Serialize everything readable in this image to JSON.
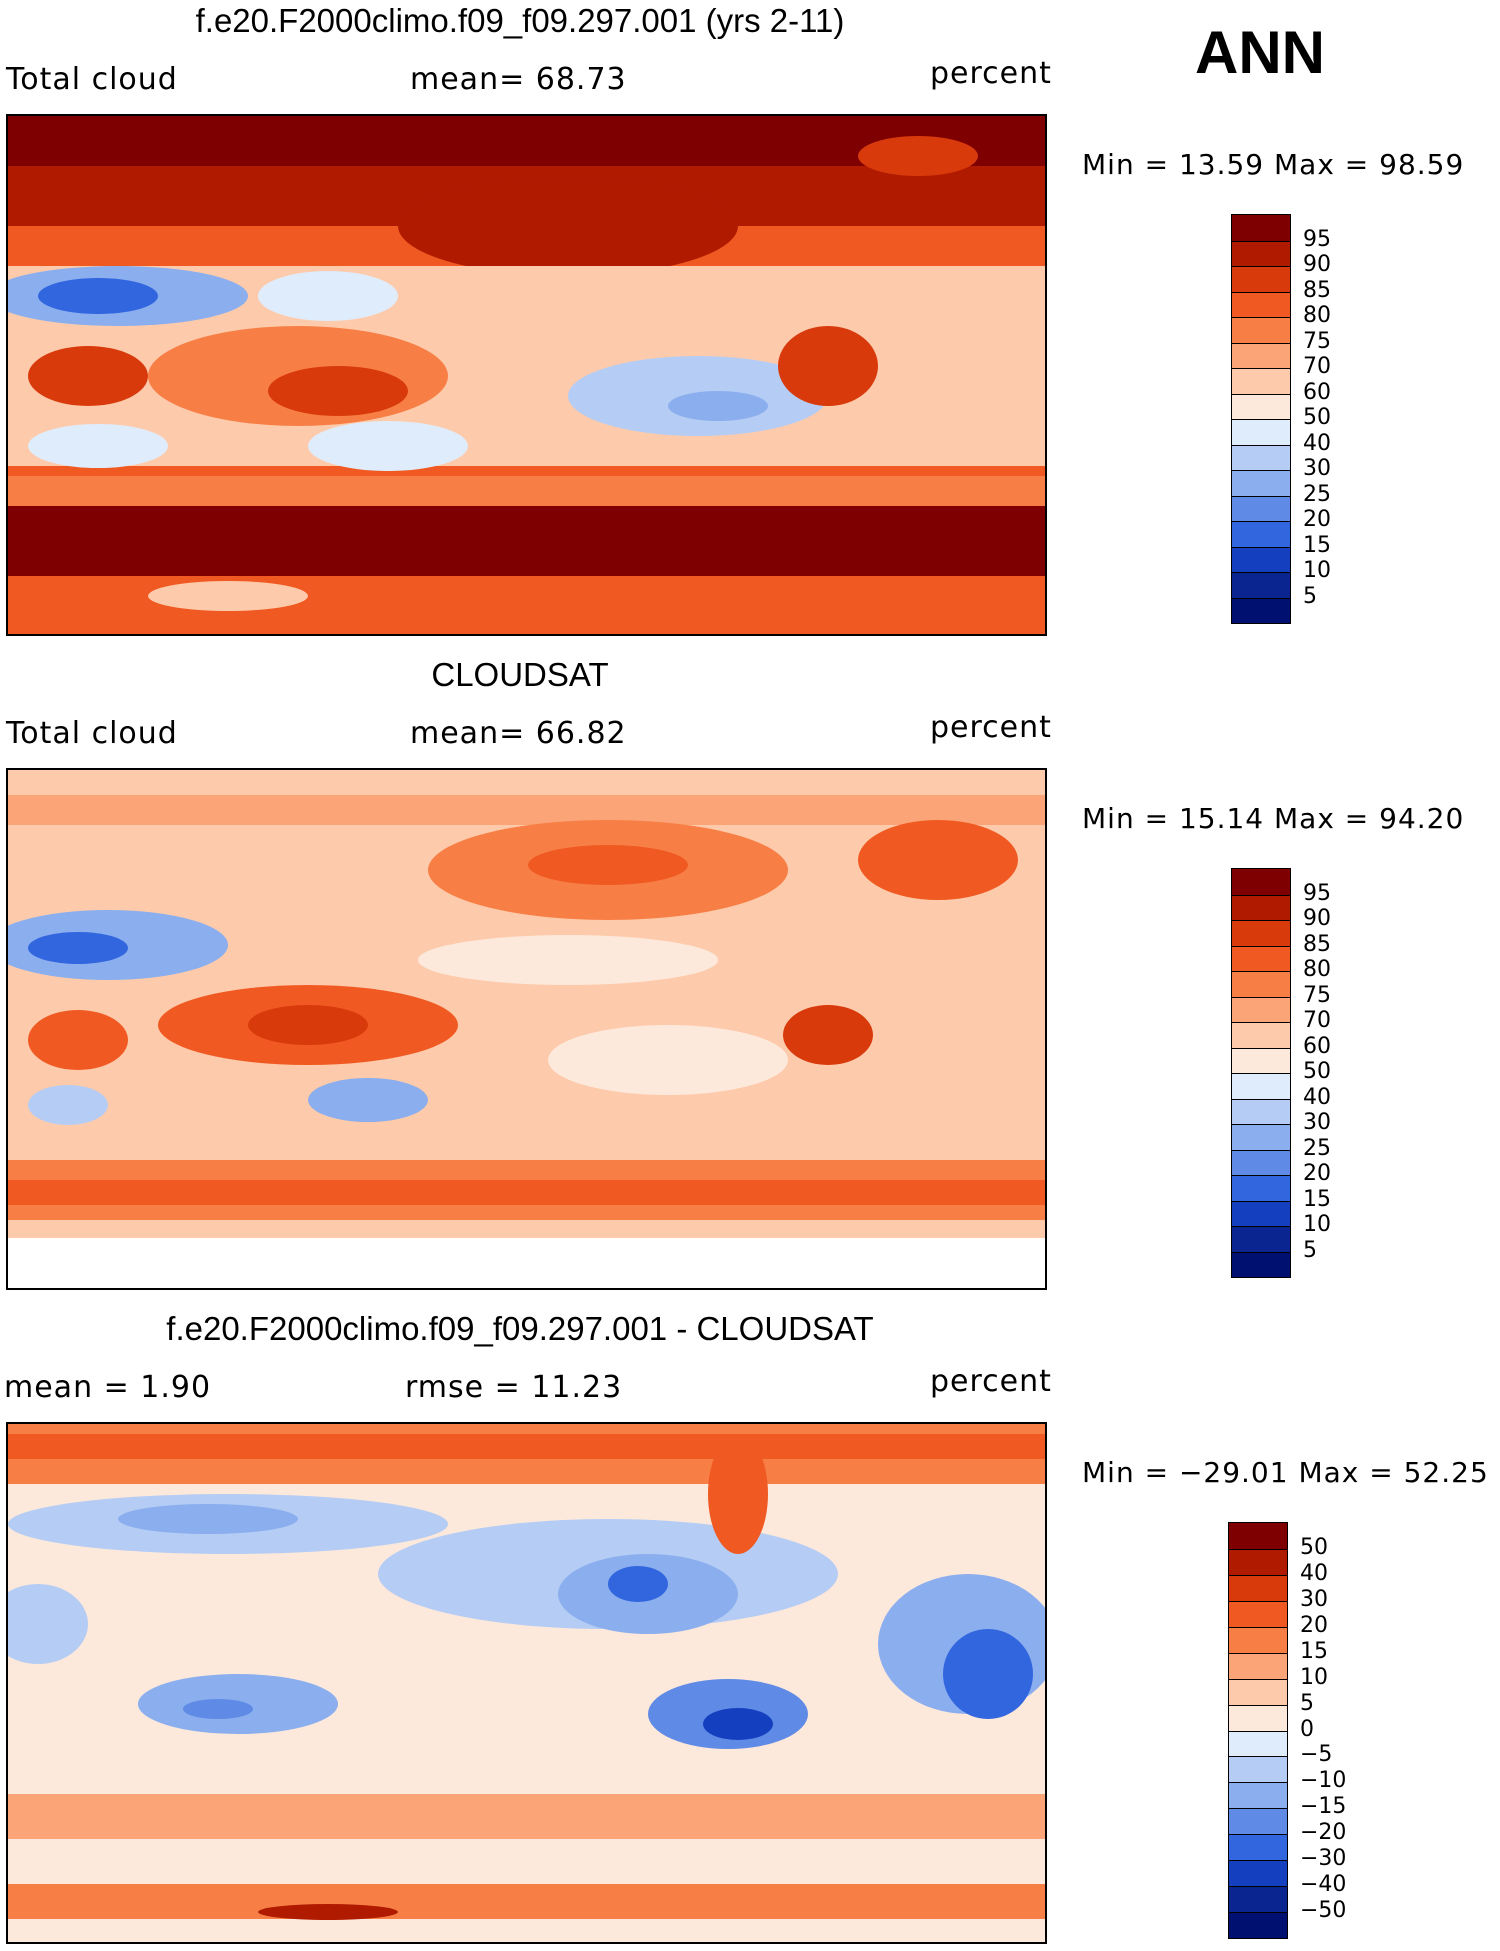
{
  "ann_label": "ANN",
  "panels": [
    {
      "title": "f.e20.F2000climo.f09_f09.297.001 (yrs 2-11)",
      "left_label": "Total cloud",
      "center_label": "mean=   68.73",
      "right_label": "percent",
      "minmax": "Min =   13.59 Max =   98.59",
      "levels": [
        "95",
        "90",
        "85",
        "80",
        "75",
        "70",
        "60",
        "50",
        "40",
        "30",
        "25",
        "20",
        "15",
        "10",
        "5"
      ]
    },
    {
      "title": "CLOUDSAT",
      "left_label": "Total cloud",
      "center_label": "mean=   66.82",
      "right_label": "percent",
      "minmax": "Min =   15.14 Max =   94.20",
      "levels": [
        "95",
        "90",
        "85",
        "80",
        "75",
        "70",
        "60",
        "50",
        "40",
        "30",
        "25",
        "20",
        "15",
        "10",
        "5"
      ]
    },
    {
      "title": "f.e20.F2000climo.f09_f09.297.001 - CLOUDSAT",
      "left_label": "mean =    1.90",
      "center_label": "rmse =   11.23",
      "right_label": "percent",
      "minmax": "Min = −29.01 Max =   52.25",
      "levels": [
        "50",
        "40",
        "30",
        "20",
        "15",
        "10",
        "5",
        "0",
        "−5",
        "−10",
        "−15",
        "−20",
        "−30",
        "−40",
        "−50"
      ]
    }
  ],
  "colors": {
    "scale": [
      "#7f0000",
      "#b01b00",
      "#d93a0c",
      "#f05a22",
      "#f77f46",
      "#fba477",
      "#fdcbab",
      "#fde8dc",
      "#dfecfb",
      "#b5cdf4",
      "#8aaeee",
      "#5f8be6",
      "#3266df",
      "#1440c0",
      "#0a2590",
      "#001070"
    ]
  }
}
